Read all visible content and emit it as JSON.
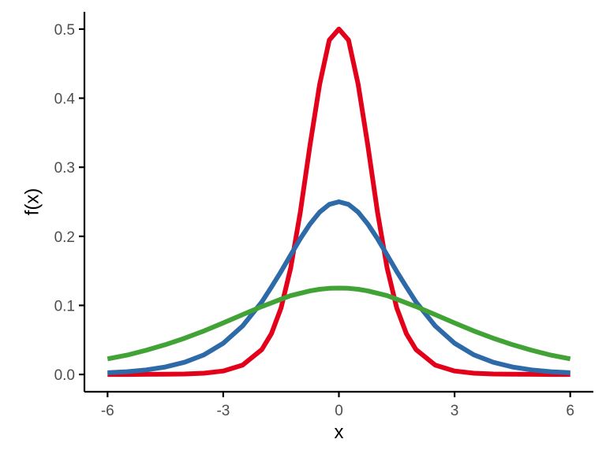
{
  "chart_data": {
    "type": "line",
    "xlabel": "x",
    "ylabel": "f(x)",
    "xlim": [
      -6.6,
      6.6
    ],
    "ylim": [
      -0.025,
      0.525
    ],
    "x_ticks": [
      -6,
      -3,
      0,
      3,
      6
    ],
    "x_tick_labels": [
      "-6",
      "-3",
      "0",
      "3",
      "6"
    ],
    "y_ticks": [
      0.0,
      0.1,
      0.2,
      0.3,
      0.4,
      0.5
    ],
    "y_tick_labels": [
      "0.0",
      "0.1",
      "0.2",
      "0.3",
      "0.4",
      "0.5"
    ],
    "grid": false,
    "legend": "none",
    "x": [
      -6,
      -5.5,
      -5,
      -4.5,
      -4,
      -3.5,
      -3,
      -2.5,
      -2,
      -1.75,
      -1.5,
      -1.25,
      -1,
      -0.75,
      -0.5,
      -0.25,
      0,
      0.25,
      0.5,
      0.75,
      1,
      1.25,
      1.5,
      1.75,
      2,
      2.5,
      3,
      3.5,
      4,
      4.5,
      5,
      5.5,
      6
    ],
    "series": [
      {
        "color": "#e3001b",
        "values": [
          0.0,
          0.0,
          0.0002,
          0.0004,
          0.0007,
          0.0018,
          0.005,
          0.0134,
          0.036,
          0.0591,
          0.0963,
          0.1542,
          0.235,
          0.332,
          0.42,
          0.484,
          0.5,
          0.484,
          0.42,
          0.332,
          0.235,
          0.1542,
          0.0963,
          0.0591,
          0.036,
          0.0134,
          0.005,
          0.0018,
          0.0007,
          0.0004,
          0.0002,
          0.0,
          0.0
        ]
      },
      {
        "color": "#2e6aa8",
        "values": [
          0.0025,
          0.004,
          0.0066,
          0.0108,
          0.0177,
          0.0284,
          0.0452,
          0.0701,
          0.105,
          0.1267,
          0.1491,
          0.173,
          0.1966,
          0.2178,
          0.235,
          0.2462,
          0.25,
          0.2462,
          0.235,
          0.2178,
          0.1966,
          0.173,
          0.1491,
          0.1267,
          0.105,
          0.0701,
          0.0452,
          0.0284,
          0.0177,
          0.0108,
          0.0066,
          0.004,
          0.0025
        ]
      },
      {
        "color": "#41a235",
        "values": [
          0.0226,
          0.0279,
          0.035,
          0.0431,
          0.0525,
          0.063,
          0.0746,
          0.0865,
          0.0983,
          0.1036,
          0.109,
          0.1141,
          0.1175,
          0.121,
          0.1233,
          0.1247,
          0.125,
          0.1247,
          0.1233,
          0.121,
          0.1175,
          0.1141,
          0.109,
          0.1036,
          0.0983,
          0.0865,
          0.0746,
          0.063,
          0.0525,
          0.0431,
          0.035,
          0.0279,
          0.0226
        ]
      }
    ]
  }
}
